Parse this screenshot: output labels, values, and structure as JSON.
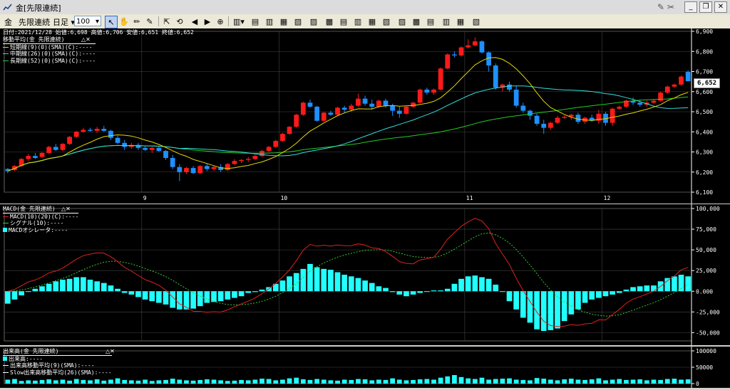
{
  "window": {
    "title": "金[先限連続]"
  },
  "toolbar": {
    "symbol": "金",
    "contract": "先限連続",
    "period": "日足",
    "count": "100"
  },
  "main": {
    "header": "日付:2021/12/28 始値:6,698 高値:6,706 安値:6,651 終値:6,652",
    "legend_title": "移動平均(金 先限連続)",
    "legend": [
      "短期線(9)(0)(SMA)(C):----",
      "中期線(26)(0)(SMA)(C):----",
      "長期線(52)(0)(SMA)(C):----"
    ],
    "last_price": "6,652",
    "y_ticks": [
      "6,900",
      "6,800",
      "6,700",
      "6,600",
      "6,500",
      "6,400",
      "6,300",
      "6,200",
      "6,100"
    ],
    "x_ticks": [
      "9",
      "10",
      "11",
      "12"
    ]
  },
  "macd": {
    "legend_title": "MACD(金 先限連続)",
    "legend": [
      "MACD(10)(20)(C):----",
      "シグナル(10):----",
      "MACDオシレータ:----"
    ],
    "y_ticks": [
      "100,000",
      "75,000",
      "50,000",
      "25,000",
      "0.000",
      "-25,000",
      "-50,000"
    ]
  },
  "volume": {
    "legend_title": "出来高(金 先限連続)",
    "legend": [
      "出来高:----",
      "出来高移動平均(9)(SMA):----",
      "Slow出来高移動平均(26)(SMA):----"
    ],
    "y_ticks": [
      "100000",
      "50000",
      "0"
    ]
  },
  "colors": {
    "up": "#ff1a1a",
    "down": "#1e90ff",
    "short_ma": "#e8d800",
    "mid_ma": "#33dddd",
    "long_ma": "#22cc22",
    "osc": "#22ffff",
    "macd": "#dd2222",
    "signal": "#33cc33"
  },
  "chart_data": [
    {
      "type": "candlestick",
      "title": "移動平均(金 先限連続)",
      "x_ticks": [
        "9",
        "10",
        "11",
        "12"
      ],
      "ylim": [
        6100,
        6900
      ],
      "candles": [
        [
          6215,
          6220,
          6195,
          6205
        ],
        [
          6210,
          6235,
          6205,
          6230
        ],
        [
          6230,
          6270,
          6225,
          6265
        ],
        [
          6265,
          6290,
          6255,
          6280
        ],
        [
          6280,
          6295,
          6265,
          6270
        ],
        [
          6275,
          6300,
          6270,
          6295
        ],
        [
          6295,
          6330,
          6290,
          6325
        ],
        [
          6325,
          6340,
          6305,
          6310
        ],
        [
          6310,
          6345,
          6305,
          6340
        ],
        [
          6340,
          6380,
          6335,
          6375
        ],
        [
          6375,
          6405,
          6370,
          6400
        ],
        [
          6400,
          6420,
          6395,
          6410
        ],
        [
          6410,
          6420,
          6400,
          6405
        ],
        [
          6405,
          6425,
          6395,
          6415
        ],
        [
          6415,
          6430,
          6400,
          6405
        ],
        [
          6405,
          6410,
          6360,
          6370
        ],
        [
          6370,
          6380,
          6340,
          6345
        ],
        [
          6345,
          6360,
          6310,
          6325
        ],
        [
          6325,
          6345,
          6315,
          6335
        ],
        [
          6335,
          6345,
          6310,
          6320
        ],
        [
          6320,
          6330,
          6305,
          6310
        ],
        [
          6310,
          6325,
          6295,
          6320
        ],
        [
          6320,
          6330,
          6300,
          6305
        ],
        [
          6305,
          6310,
          6260,
          6270
        ],
        [
          6270,
          6285,
          6215,
          6225
        ],
        [
          6225,
          6240,
          6155,
          6200
        ],
        [
          6200,
          6225,
          6190,
          6220
        ],
        [
          6220,
          6230,
          6190,
          6195
        ],
        [
          6195,
          6235,
          6190,
          6230
        ],
        [
          6230,
          6240,
          6205,
          6215
        ],
        [
          6215,
          6230,
          6205,
          6225
        ],
        [
          6225,
          6240,
          6200,
          6210
        ],
        [
          6210,
          6245,
          6205,
          6240
        ],
        [
          6240,
          6265,
          6235,
          6255
        ],
        [
          6255,
          6265,
          6245,
          6260
        ],
        [
          6260,
          6275,
          6250,
          6265
        ],
        [
          6265,
          6285,
          6260,
          6280
        ],
        [
          6280,
          6310,
          6275,
          6305
        ],
        [
          6305,
          6330,
          6300,
          6325
        ],
        [
          6325,
          6360,
          6320,
          6355
        ],
        [
          6355,
          6395,
          6350,
          6390
        ],
        [
          6390,
          6430,
          6385,
          6425
        ],
        [
          6425,
          6490,
          6420,
          6485
        ],
        [
          6485,
          6550,
          6480,
          6545
        ],
        [
          6545,
          6560,
          6520,
          6525
        ],
        [
          6525,
          6530,
          6450,
          6455
        ],
        [
          6455,
          6500,
          6450,
          6495
        ],
        [
          6495,
          6505,
          6480,
          6485
        ],
        [
          6485,
          6525,
          6480,
          6520
        ],
        [
          6520,
          6530,
          6495,
          6510
        ],
        [
          6510,
          6540,
          6500,
          6530
        ],
        [
          6530,
          6590,
          6525,
          6565
        ],
        [
          6565,
          6580,
          6530,
          6540
        ],
        [
          6540,
          6560,
          6510,
          6525
        ],
        [
          6525,
          6560,
          6520,
          6555
        ],
        [
          6555,
          6565,
          6520,
          6530
        ],
        [
          6530,
          6540,
          6480,
          6505
        ],
        [
          6505,
          6525,
          6470,
          6490
        ],
        [
          6490,
          6530,
          6485,
          6525
        ],
        [
          6525,
          6550,
          6520,
          6545
        ],
        [
          6545,
          6615,
          6540,
          6610
        ],
        [
          6610,
          6620,
          6585,
          6595
        ],
        [
          6595,
          6615,
          6585,
          6610
        ],
        [
          6610,
          6720,
          6605,
          6715
        ],
        [
          6715,
          6790,
          6710,
          6785
        ],
        [
          6785,
          6800,
          6770,
          6780
        ],
        [
          6780,
          6825,
          6775,
          6820
        ],
        [
          6820,
          6860,
          6815,
          6830
        ],
        [
          6830,
          6870,
          6825,
          6850
        ],
        [
          6850,
          6855,
          6790,
          6795
        ],
        [
          6795,
          6800,
          6700,
          6730
        ],
        [
          6730,
          6740,
          6610,
          6620
        ],
        [
          6620,
          6640,
          6600,
          6635
        ],
        [
          6635,
          6650,
          6600,
          6610
        ],
        [
          6610,
          6630,
          6520,
          6530
        ],
        [
          6530,
          6545,
          6495,
          6505
        ],
        [
          6505,
          6510,
          6460,
          6480
        ],
        [
          6480,
          6490,
          6430,
          6440
        ],
        [
          6440,
          6460,
          6390,
          6420
        ],
        [
          6420,
          6450,
          6410,
          6445
        ],
        [
          6445,
          6480,
          6440,
          6470
        ],
        [
          6470,
          6480,
          6465,
          6475
        ],
        [
          6475,
          6490,
          6460,
          6485
        ],
        [
          6485,
          6495,
          6440,
          6450
        ],
        [
          6450,
          6475,
          6440,
          6470
        ],
        [
          6470,
          6485,
          6450,
          6455
        ],
        [
          6455,
          6510,
          6440,
          6490
        ],
        [
          6490,
          6500,
          6430,
          6445
        ],
        [
          6445,
          6520,
          6430,
          6515
        ],
        [
          6515,
          6530,
          6510,
          6525
        ],
        [
          6525,
          6560,
          6520,
          6555
        ],
        [
          6555,
          6570,
          6535,
          6545
        ],
        [
          6545,
          6560,
          6525,
          6535
        ],
        [
          6535,
          6555,
          6525,
          6545
        ],
        [
          6545,
          6560,
          6540,
          6555
        ],
        [
          6555,
          6600,
          6550,
          6595
        ],
        [
          6595,
          6630,
          6590,
          6625
        ],
        [
          6625,
          6640,
          6620,
          6635
        ],
        [
          6635,
          6680,
          6630,
          6675
        ],
        [
          6698,
          6706,
          6651,
          6652
        ]
      ],
      "series": [
        {
          "name": "短期線(9)(0)(SMA)(C)"
        },
        {
          "name": "中期線(26)(0)(SMA)(C)"
        },
        {
          "name": "長期線(52)(0)(SMA)(C)"
        }
      ]
    },
    {
      "type": "bar",
      "title": "MACD(金 先限連続)",
      "ylim": [
        -60000,
        100000
      ],
      "series": [
        {
          "name": "MACDオシレータ",
          "values": [
            -15000,
            -10000,
            -5000,
            0,
            3000,
            6000,
            9000,
            12000,
            14000,
            15000,
            17000,
            17000,
            14000,
            12000,
            10000,
            7000,
            3000,
            -2000,
            -4000,
            -7000,
            -10000,
            -12000,
            -14000,
            -16000,
            -20000,
            -22000,
            -22000,
            -21000,
            -18000,
            -14000,
            -13000,
            -12000,
            -10000,
            -8000,
            -6000,
            -2000,
            -1000,
            2000,
            5000,
            9000,
            13000,
            18000,
            22000,
            27000,
            33000,
            29000,
            27000,
            26000,
            23000,
            20000,
            18000,
            16000,
            13000,
            10000,
            6000,
            4000,
            -1000,
            -4000,
            -6000,
            -4000,
            -2000,
            0,
            1000,
            1000,
            3000,
            9000,
            15000,
            18000,
            19000,
            17000,
            15000,
            8000,
            0,
            -12000,
            -22000,
            -32000,
            -38000,
            -46000,
            -48000,
            -47000,
            -45000,
            -36000,
            -28000,
            -22000,
            -14000,
            -10000,
            -8000,
            -6000,
            -4000,
            -2000,
            2000,
            5000,
            6000,
            7000,
            7000,
            12000,
            16000,
            18000,
            20000,
            18000
          ]
        },
        {
          "name": "MACD(10)(20)(C)"
        },
        {
          "name": "シグナル(10)"
        }
      ]
    },
    {
      "type": "bar",
      "title": "出来高(金 先限連続)",
      "ylim": [
        0,
        100000
      ],
      "series": [
        {
          "name": "出来高",
          "values": [
            12000,
            14000,
            8000,
            10000,
            9000,
            11000,
            13000,
            10000,
            12000,
            9000,
            14000,
            11000,
            10000,
            13000,
            9000,
            12000,
            16000,
            11000,
            10000,
            9000,
            12000,
            8000,
            10000,
            11000,
            15000,
            12000,
            10000,
            9000,
            11000,
            13000,
            12000,
            10000,
            8000,
            9000,
            11000,
            10000,
            12000,
            15000,
            14000,
            10000,
            12000,
            16000,
            18000,
            13000,
            11000,
            14000,
            12000,
            10000,
            9000,
            12000,
            11000,
            14000,
            13000,
            10000,
            12000,
            11000,
            16000,
            12000,
            10000,
            11000,
            13000,
            14000,
            12000,
            18000,
            22000,
            26000,
            20000,
            16000,
            14000,
            18000,
            12000,
            14000,
            15000,
            16000,
            12000,
            11000,
            10000,
            17000,
            15000,
            12000,
            10000,
            13000,
            15000,
            12000,
            11000,
            13000,
            16000,
            10000,
            12000,
            14000,
            11000,
            12000,
            13000,
            10000,
            12000,
            11000,
            14000,
            15000,
            12000,
            13000
          ]
        }
      ]
    }
  ]
}
